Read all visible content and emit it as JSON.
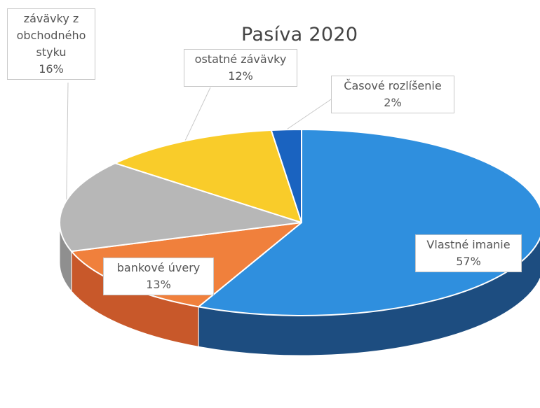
{
  "chart_data": {
    "type": "pie",
    "title": "Pasíva 2020",
    "slices": [
      {
        "label": "Vlastné imanie",
        "pct_label": "57%",
        "value": 57,
        "color": "#2f8fde",
        "side_color": "#1d4d80"
      },
      {
        "label": "bankové úvery",
        "pct_label": "13%",
        "value": 13,
        "color": "#f0803c",
        "side_color": "#c8582a"
      },
      {
        "label": "závävky z obchodného styku",
        "label_lines": [
          "závävky z",
          "obchodného",
          "styku"
        ],
        "pct_label": "16%",
        "value": 16,
        "color": "#b7b7b7",
        "side_color": "#8f8f8f"
      },
      {
        "label": "ostatné závävky",
        "pct_label": "12%",
        "value": 12,
        "color": "#f9cc2a",
        "side_color": "#c9a21f"
      },
      {
        "label": "Časové rozlíšenie",
        "pct_label": "2%",
        "value": 2,
        "color": "#1a63c0",
        "side_color": "#123f7a"
      }
    ]
  }
}
